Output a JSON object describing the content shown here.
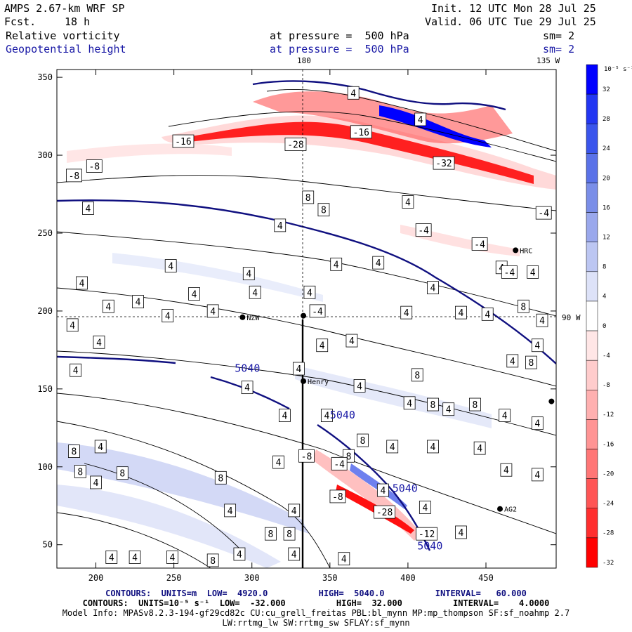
{
  "header": {
    "model": "AMPS 2.67-km WRF SP",
    "fcst_label": "Fcst.",
    "fcst_value": "18 h",
    "init": "Init. 12 UTC Mon 28 Jul 25",
    "valid": "Valid. 06 UTC Tue 29 Jul 25",
    "field1_name": "Relative vorticity",
    "field1_level": "at pressure =  500 hPa",
    "field1_sm": "sm= 2",
    "field2_name": "Geopotential height",
    "field2_level": "at pressure =  500 hPa",
    "field2_sm": "sm= 2"
  },
  "map": {
    "top_label_180": "180",
    "top_label_135w": "135 W",
    "right_label_90w": "90 W",
    "x_ticks": [
      "200",
      "250",
      "300",
      "350",
      "400",
      "450"
    ],
    "y_ticks": [
      "300",
      "250",
      "200",
      "150",
      "100",
      "50"
    ],
    "x_tick_values": [
      200,
      250,
      300,
      350,
      400,
      450
    ],
    "y_tick_values": [
      300,
      250,
      200,
      150,
      100,
      50
    ],
    "x_range": [
      175,
      495
    ],
    "y_range": [
      35,
      355
    ],
    "stations": [
      {
        "name": "HRC",
        "x": 469,
        "y": 239
      },
      {
        "name": "NZW",
        "x": 294,
        "y": 196
      },
      {
        "name": "Henry",
        "x": 333,
        "y": 155
      },
      {
        "name": "AG2",
        "x": 459,
        "y": 73
      },
      {
        "name": "",
        "x": 333,
        "y": 197
      },
      {
        "name": "",
        "x": 492,
        "y": 142
      }
    ],
    "height_labels": [
      {
        "text": "5040",
        "x": 289,
        "y": 161
      },
      {
        "text": "5040",
        "x": 350,
        "y": 131
      },
      {
        "text": "5040",
        "x": 390,
        "y": 84
      },
      {
        "text": "5040",
        "x": 406,
        "y": 47
      }
    ],
    "vort_labels": [
      {
        "text": "4",
        "x": 408,
        "y": 323
      },
      {
        "text": "-16",
        "x": 370,
        "y": 315
      },
      {
        "text": "-16",
        "x": 256,
        "y": 309
      },
      {
        "text": "-28",
        "x": 328,
        "y": 307
      },
      {
        "text": "-32",
        "x": 423,
        "y": 295
      },
      {
        "text": "-8",
        "x": 186,
        "y": 287
      },
      {
        "text": "-8",
        "x": 199,
        "y": 293
      },
      {
        "text": "4",
        "x": 365,
        "y": 340
      },
      {
        "text": "8",
        "x": 336,
        "y": 273
      },
      {
        "text": "8",
        "x": 346,
        "y": 265
      },
      {
        "text": "4",
        "x": 195,
        "y": 266
      },
      {
        "text": "4",
        "x": 318,
        "y": 255
      },
      {
        "text": "-4",
        "x": 410,
        "y": 252
      },
      {
        "text": "-4",
        "x": 446,
        "y": 243
      },
      {
        "text": "4",
        "x": 400,
        "y": 270
      },
      {
        "text": "-4",
        "x": 487,
        "y": 263
      },
      {
        "text": "4",
        "x": 460,
        "y": 228
      },
      {
        "text": "-4",
        "x": 465,
        "y": 225
      },
      {
        "text": "4",
        "x": 480,
        "y": 225
      },
      {
        "text": "4",
        "x": 248,
        "y": 229
      },
      {
        "text": "4",
        "x": 298,
        "y": 224
      },
      {
        "text": "4",
        "x": 354,
        "y": 230
      },
      {
        "text": "4",
        "x": 381,
        "y": 231
      },
      {
        "text": "4",
        "x": 263,
        "y": 211
      },
      {
        "text": "4",
        "x": 302,
        "y": 212
      },
      {
        "text": "4",
        "x": 337,
        "y": 212
      },
      {
        "text": "4",
        "x": 416,
        "y": 215
      },
      {
        "text": "4",
        "x": 191,
        "y": 218
      },
      {
        "text": "4",
        "x": 227,
        "y": 206
      },
      {
        "text": "4",
        "x": 208,
        "y": 203
      },
      {
        "text": "-4",
        "x": 342,
        "y": 200
      },
      {
        "text": "4",
        "x": 275,
        "y": 200
      },
      {
        "text": "4",
        "x": 399,
        "y": 199
      },
      {
        "text": "4",
        "x": 434,
        "y": 199
      },
      {
        "text": "4",
        "x": 451,
        "y": 198
      },
      {
        "text": "8",
        "x": 474,
        "y": 203
      },
      {
        "text": "4",
        "x": 486,
        "y": 194
      },
      {
        "text": "4",
        "x": 246,
        "y": 197
      },
      {
        "text": "4",
        "x": 185,
        "y": 191
      },
      {
        "text": "4",
        "x": 202,
        "y": 180
      },
      {
        "text": "4",
        "x": 483,
        "y": 178
      },
      {
        "text": "4",
        "x": 467,
        "y": 168
      },
      {
        "text": "8",
        "x": 479,
        "y": 167
      },
      {
        "text": "4",
        "x": 364,
        "y": 181
      },
      {
        "text": "4",
        "x": 345,
        "y": 178
      },
      {
        "text": "4",
        "x": 187,
        "y": 162
      },
      {
        "text": "4",
        "x": 330,
        "y": 163
      },
      {
        "text": "4",
        "x": 297,
        "y": 151
      },
      {
        "text": "8",
        "x": 406,
        "y": 159
      },
      {
        "text": "8",
        "x": 416,
        "y": 140
      },
      {
        "text": "4",
        "x": 369,
        "y": 152
      },
      {
        "text": "4",
        "x": 401,
        "y": 141
      },
      {
        "text": "8",
        "x": 443,
        "y": 140
      },
      {
        "text": "4",
        "x": 426,
        "y": 137
      },
      {
        "text": "4",
        "x": 321,
        "y": 133
      },
      {
        "text": "4",
        "x": 348,
        "y": 133
      },
      {
        "text": "4",
        "x": 483,
        "y": 128
      },
      {
        "text": "4",
        "x": 462,
        "y": 133
      },
      {
        "text": "8",
        "x": 371,
        "y": 117
      },
      {
        "text": "8",
        "x": 362,
        "y": 107
      },
      {
        "text": "4",
        "x": 390,
        "y": 113
      },
      {
        "text": "4",
        "x": 416,
        "y": 113
      },
      {
        "text": "4",
        "x": 446,
        "y": 112
      },
      {
        "text": "-8",
        "x": 335,
        "y": 107
      },
      {
        "text": "-4",
        "x": 356,
        "y": 102
      },
      {
        "text": "4",
        "x": 317,
        "y": 103
      },
      {
        "text": "8",
        "x": 186,
        "y": 110
      },
      {
        "text": "4",
        "x": 203,
        "y": 113
      },
      {
        "text": "8",
        "x": 190,
        "y": 97
      },
      {
        "text": "4",
        "x": 200,
        "y": 90
      },
      {
        "text": "8",
        "x": 217,
        "y": 96
      },
      {
        "text": "8",
        "x": 280,
        "y": 93
      },
      {
        "text": "-8",
        "x": 355,
        "y": 81
      },
      {
        "text": "-28",
        "x": 385,
        "y": 71
      },
      {
        "text": "4",
        "x": 411,
        "y": 74
      },
      {
        "text": "4",
        "x": 384,
        "y": 85
      },
      {
        "text": "4",
        "x": 463,
        "y": 98
      },
      {
        "text": "4",
        "x": 483,
        "y": 95
      },
      {
        "text": "4",
        "x": 286,
        "y": 72
      },
      {
        "text": "4",
        "x": 327,
        "y": 72
      },
      {
        "text": "8",
        "x": 312,
        "y": 57
      },
      {
        "text": "8",
        "x": 324,
        "y": 57
      },
      {
        "text": "-12",
        "x": 412,
        "y": 57
      },
      {
        "text": "4",
        "x": 434,
        "y": 58
      },
      {
        "text": "4",
        "x": 327,
        "y": 44
      },
      {
        "text": "4",
        "x": 210,
        "y": 42
      },
      {
        "text": "4",
        "x": 225,
        "y": 42
      },
      {
        "text": "4",
        "x": 249,
        "y": 42
      },
      {
        "text": "4",
        "x": 292,
        "y": 44
      },
      {
        "text": "8",
        "x": 275,
        "y": 40
      },
      {
        "text": "4",
        "x": 359,
        "y": 41
      }
    ]
  },
  "colorbar": {
    "unit": "10⁻⁵ s⁻¹",
    "labels": [
      "32",
      "28",
      "24",
      "20",
      "16",
      "12",
      "8",
      "4",
      "0",
      "-4",
      "-8",
      "-12",
      "-16",
      "-20",
      "-24",
      "-28",
      "-32"
    ],
    "colors": [
      "#0000ff",
      "#2236f2",
      "#3a55ec",
      "#5a72e8",
      "#7a8ee8",
      "#9aa8ec",
      "#bcc6f2",
      "#dde2f8",
      "#ffffff",
      "#ffe6e6",
      "#ffcccc",
      "#ffb0b0",
      "#ff9494",
      "#ff7676",
      "#ff5555",
      "#ff2e2e",
      "#ff0000"
    ]
  },
  "footer": {
    "line1": "CONTOURS:  UNITS=m  LOW=  4920.0          HIGH=  5040.0          INTERVAL=   60.000",
    "line2": "CONTOURS:  UNITS=10⁻⁵ s⁻¹  LOW=  -32.000          HIGH=  32.000          INTERVAL=    4.0000",
    "line3": "Model Info: MPASv8.2.3-194-gf29cd82c CU:cu_grell_freitas PBL:bl_mynn MP:mp_thompson SF:sf_noahmp 2.7",
    "line4": "LW:rrtmg_lw SW:rrtmg_sw SFLAY:sf_mynn"
  }
}
